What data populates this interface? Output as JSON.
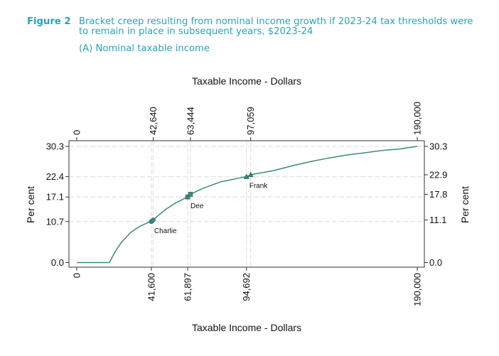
{
  "figure": {
    "label": "Figure 2",
    "title": "Bracket creep resulting from nominal income growth if 2023-24 tax thresholds were to remain in place in subsequent years, $2023-24",
    "subtitle": "(A) Nominal taxable income"
  },
  "colors": {
    "accent": "#2aa3b8",
    "series": "#3c8a7b",
    "grid": "#e4e4e4"
  },
  "chart_data": {
    "type": "line",
    "title": "",
    "xlabel_top": "Taxable Income - Dollars",
    "xlabel_bottom": "Taxable Income - Dollars",
    "ylabel_left": "Per cent",
    "ylabel_right": "Per cent",
    "xlim": [
      0,
      190000
    ],
    "ylim": [
      0,
      30.3
    ],
    "x_ticks_bottom": [
      {
        "value": 0,
        "label": "0"
      },
      {
        "value": 41600,
        "label": "41,600"
      },
      {
        "value": 61897,
        "label": "61,897"
      },
      {
        "value": 94692,
        "label": "94,692"
      },
      {
        "value": 190000,
        "label": "190,000"
      }
    ],
    "x_ticks_top": [
      {
        "value": 0,
        "label": "0"
      },
      {
        "value": 42640,
        "label": "42,640"
      },
      {
        "value": 63444,
        "label": "63,444"
      },
      {
        "value": 97059,
        "label": "97,059"
      },
      {
        "value": 190000,
        "label": "190,000"
      }
    ],
    "y_ticks_left": [
      {
        "value": 0,
        "label": "0.0"
      },
      {
        "value": 10.7,
        "label": "10.7"
      },
      {
        "value": 17.1,
        "label": "17.1"
      },
      {
        "value": 22.4,
        "label": "22.4"
      },
      {
        "value": 30.3,
        "label": "30.3"
      }
    ],
    "y_ticks_right": [
      {
        "value": 0,
        "label": "0.0"
      },
      {
        "value": 11.1,
        "label": "11.1"
      },
      {
        "value": 17.8,
        "label": "17.8"
      },
      {
        "value": 22.9,
        "label": "22.9"
      },
      {
        "value": 30.3,
        "label": "30.3"
      }
    ],
    "grid": true,
    "series": [
      {
        "x": [
          0,
          18200,
          20000,
          22000,
          25000,
          30000,
          35000,
          40000,
          41600,
          45000,
          50000,
          55000,
          60000,
          61897,
          63444,
          70000,
          80000,
          90000,
          94692,
          97059,
          110000,
          120000,
          130000,
          140000,
          150000,
          160000,
          170000,
          180000,
          190000
        ],
        "y": [
          0,
          0,
          1.6,
          3.3,
          5.3,
          7.8,
          9.4,
          10.5,
          10.7,
          12.1,
          14.0,
          15.5,
          16.7,
          17.1,
          17.8,
          19.3,
          21.0,
          22.0,
          22.4,
          22.9,
          24.0,
          25.2,
          26.3,
          27.2,
          28.0,
          28.6,
          29.2,
          29.6,
          30.3
        ]
      }
    ],
    "markers": [
      {
        "name": "Charlie",
        "shape": "circle",
        "x_from": 41600,
        "y_from": 10.7,
        "x_to": 42640,
        "y_to": 11.1
      },
      {
        "name": "Dee",
        "shape": "square",
        "x_from": 61897,
        "y_from": 17.1,
        "x_to": 63444,
        "y_to": 17.8
      },
      {
        "name": "Frank",
        "shape": "triangle",
        "x_from": 94692,
        "y_from": 22.4,
        "x_to": 97059,
        "y_to": 22.9
      }
    ]
  }
}
